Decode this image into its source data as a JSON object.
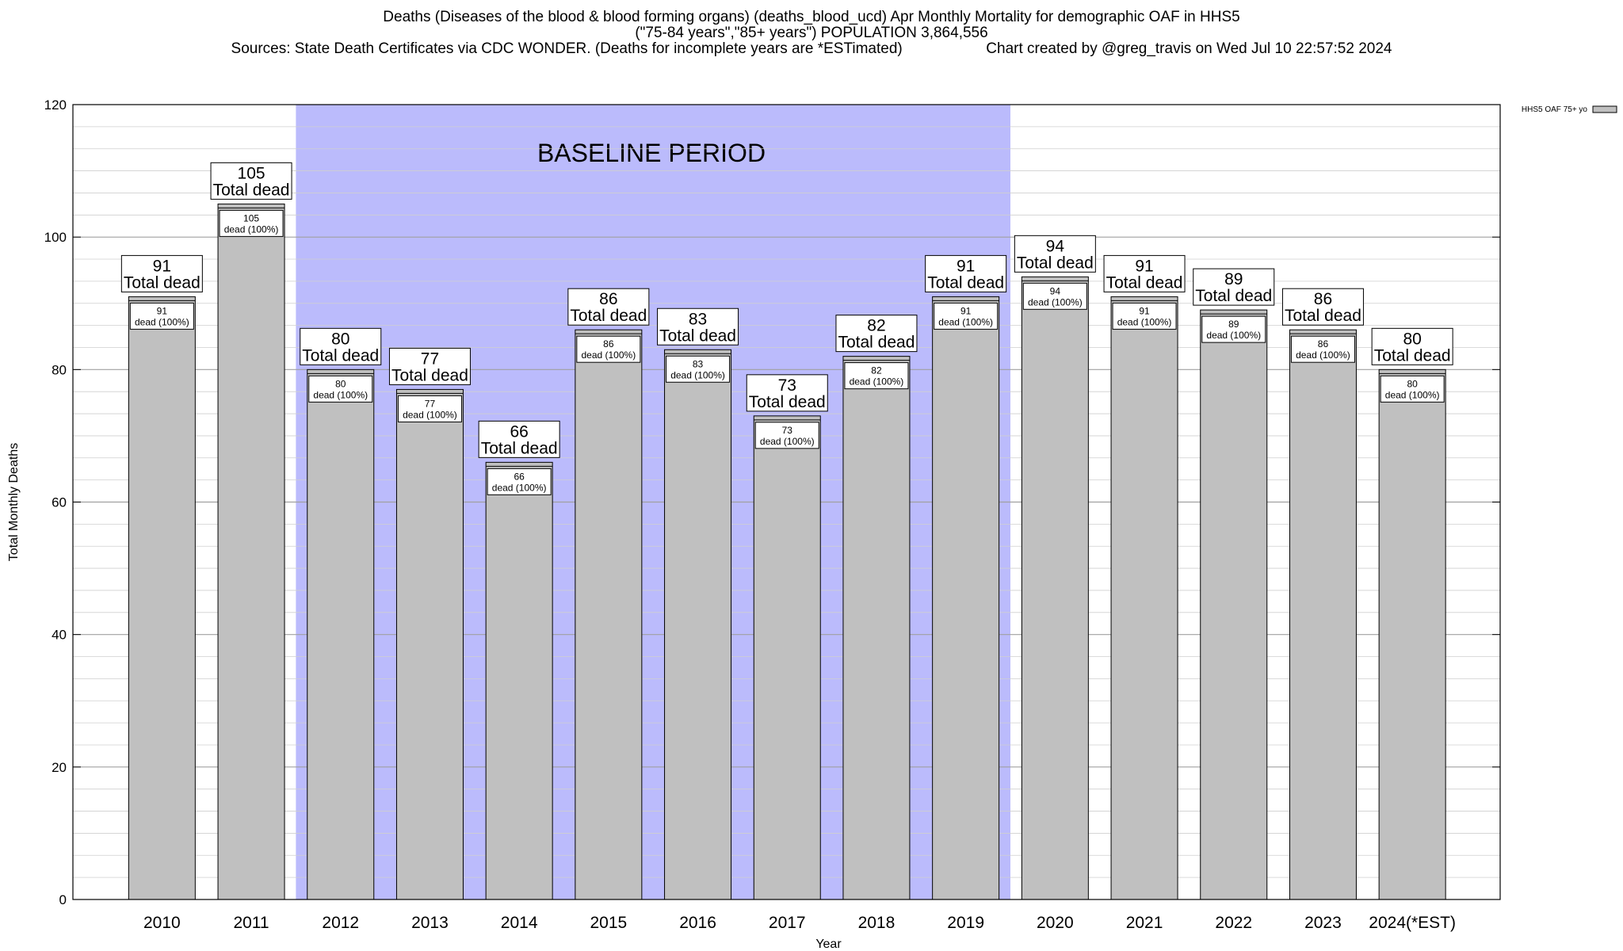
{
  "header": {
    "title_line1": "Deaths (Diseases of the blood & blood forming organs) (deaths_blood_ucd) Apr Monthly Mortality for demographic OAF in HHS5",
    "title_line2": "(\"75-84 years\",\"85+ years\") POPULATION 3,864,556",
    "sources": "Sources: State Death Certificates via CDC WONDER. (Deaths for incomplete years are *ESTimated)",
    "credit": "Chart created by @greg_travis on Wed Jul 10 22:57:52 2024"
  },
  "chart_data": {
    "type": "bar",
    "categories": [
      "2010",
      "2011",
      "2012",
      "2013",
      "2014",
      "2015",
      "2016",
      "2017",
      "2018",
      "2019",
      "2020",
      "2021",
      "2022",
      "2023",
      "2024(*EST)"
    ],
    "series": [
      {
        "name": "HHS5 OAF 75+ yo",
        "values": [
          91,
          105,
          80,
          77,
          66,
          86,
          83,
          73,
          82,
          91,
          94,
          91,
          89,
          86,
          80
        ]
      }
    ],
    "total_label": "Total dead",
    "segment_label": "dead (100%)",
    "xlabel": "Year",
    "ylabel": "Total Monthly Deaths",
    "ylim": [
      0,
      120
    ],
    "yticks": [
      0,
      20,
      40,
      60,
      80,
      100,
      120
    ],
    "grid": true,
    "legend_position": "top-right",
    "baseline_period": {
      "label": "BASELINE PERIOD",
      "start": "2012",
      "end": "2019",
      "color": "#bbbbfc"
    },
    "bar_color": "#c0c0c0"
  }
}
